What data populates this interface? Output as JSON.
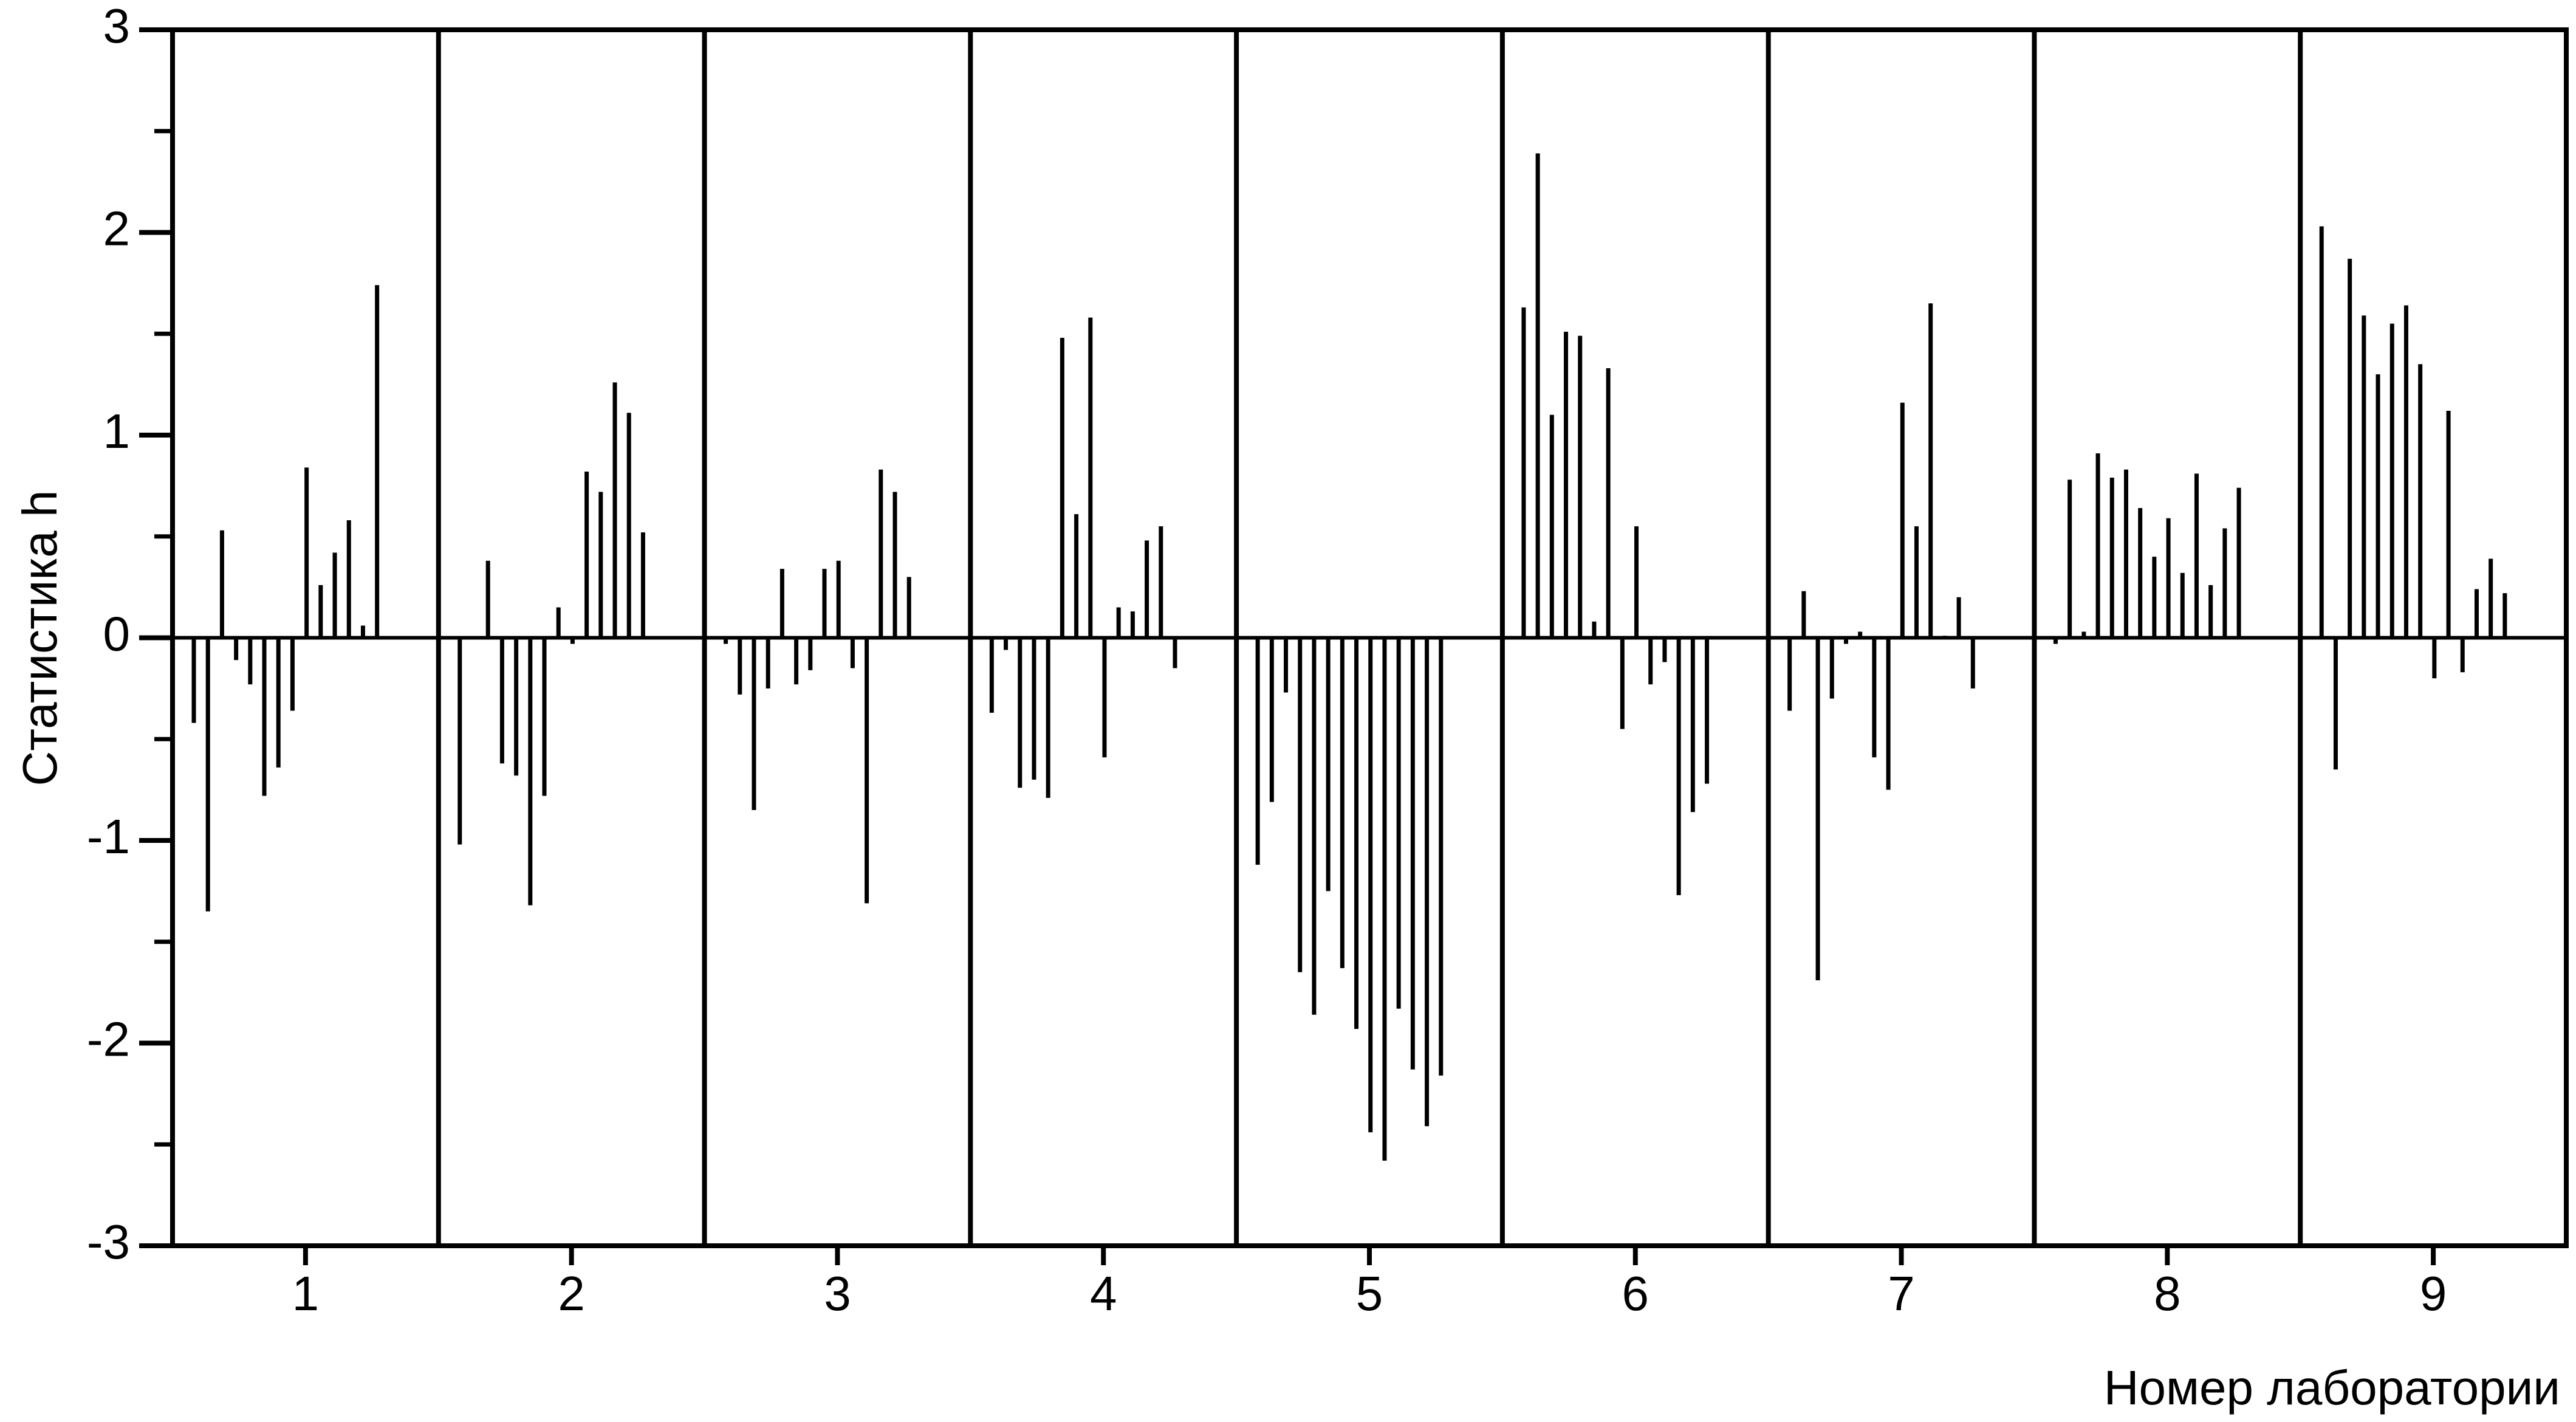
{
  "chart_data": {
    "type": "bar",
    "ylabel": "Статистика h",
    "xlabel": "Номер лаборатории",
    "categories": [
      "1",
      "2",
      "3",
      "4",
      "5",
      "6",
      "7",
      "8",
      "9"
    ],
    "values": [
      [
        -0.42,
        -1.35,
        0.53,
        -0.11,
        -0.23,
        -0.78,
        -0.64,
        -0.36,
        0.84,
        0.26,
        0.42,
        0.58,
        0.06,
        1.74
      ],
      [
        -1.02,
        0.0,
        0.38,
        -0.62,
        -0.68,
        -1.32,
        -0.78,
        0.15,
        -0.03,
        0.82,
        0.72,
        1.26,
        1.11,
        0.52
      ],
      [
        -0.03,
        -0.28,
        -0.85,
        -0.25,
        0.34,
        -0.23,
        -0.16,
        0.34,
        0.38,
        -0.15,
        -1.31,
        0.83,
        0.72,
        0.3
      ],
      [
        -0.37,
        -0.06,
        -0.74,
        -0.7,
        -0.79,
        1.48,
        0.61,
        1.58,
        -0.59,
        0.15,
        0.13,
        0.48,
        0.55,
        -0.15
      ],
      [
        -1.12,
        -0.81,
        -0.27,
        -1.65,
        -1.86,
        -1.25,
        -1.63,
        -1.93,
        -2.44,
        -2.58,
        -1.83,
        -2.13,
        -2.41,
        -2.16
      ],
      [
        1.63,
        2.39,
        1.1,
        1.51,
        1.49,
        0.08,
        1.33,
        -0.45,
        0.55,
        -0.23,
        -0.12,
        -1.27,
        -0.86,
        -0.72
      ],
      [
        -0.36,
        0.23,
        -1.69,
        -0.3,
        -0.03,
        0.03,
        -0.59,
        -0.75,
        1.16,
        0.55,
        1.65,
        0.01,
        0.2,
        -0.25
      ],
      [
        -0.03,
        0.78,
        0.03,
        0.91,
        0.79,
        0.83,
        0.64,
        0.4,
        0.59,
        0.32,
        0.81,
        0.26,
        0.54,
        0.74
      ],
      [
        2.03,
        -0.65,
        1.87,
        1.59,
        1.3,
        1.55,
        1.64,
        1.35,
        -0.2,
        1.12,
        -0.17,
        0.24,
        0.39,
        0.22
      ]
    ],
    "color": "#000000",
    "ylim": [
      -3,
      3
    ],
    "yticks": [
      -3,
      -2,
      -1,
      0,
      1,
      2,
      3
    ]
  }
}
